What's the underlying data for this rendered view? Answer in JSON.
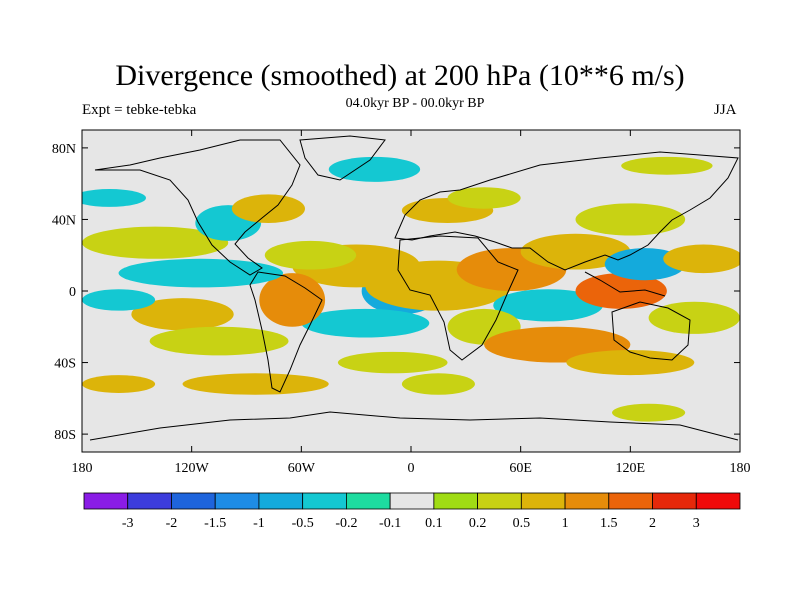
{
  "title": "Divergence (smoothed) at 200 hPa (10**6 m/s)",
  "left_label": "Expt = tebke-tebka",
  "center_label": "04.0kyr BP - 00.0kyr BP",
  "right_label": "JJA",
  "lat_ticks": [
    "80N",
    "40N",
    "0",
    "40S",
    "80S"
  ],
  "lat_values": [
    80,
    40,
    0,
    -40,
    -80
  ],
  "lon_ticks": [
    "180",
    "120W",
    "60W",
    "0",
    "60E",
    "120E",
    "180"
  ],
  "lon_values": [
    -180,
    -120,
    -60,
    0,
    60,
    120,
    180
  ],
  "colorbar": {
    "labels": [
      "-3",
      "-2",
      "-1.5",
      "-1",
      "-0.5",
      "-0.2",
      "-0.1",
      "0.1",
      "0.2",
      "0.5",
      "1",
      "1.5",
      "2",
      "3"
    ],
    "colors": [
      "#8a1ce6",
      "#3c3cdc",
      "#1e64dc",
      "#1e8ce6",
      "#14aadc",
      "#14c8d2",
      "#1edca0",
      "#e6e6e6",
      "#a0dc14",
      "#c8d214",
      "#dcb40a",
      "#e68c0a",
      "#eb640a",
      "#e6280a",
      "#f00a0a"
    ]
  },
  "field_blobs": [
    {
      "lon": -5,
      "lat": 0,
      "rx": 12,
      "ry": 8,
      "c": 1
    },
    {
      "lon": -5,
      "lat": 0,
      "rx": 22,
      "ry": 13,
      "c": 4
    },
    {
      "lon": 15,
      "lat": 3,
      "rx": 40,
      "ry": 14,
      "c": 10
    },
    {
      "lon": -30,
      "lat": 14,
      "rx": 35,
      "ry": 12,
      "c": 10
    },
    {
      "lon": -25,
      "lat": -18,
      "rx": 35,
      "ry": 8,
      "c": 5
    },
    {
      "lon": -65,
      "lat": -5,
      "rx": 18,
      "ry": 15,
      "c": 11
    },
    {
      "lon": -55,
      "lat": 20,
      "rx": 25,
      "ry": 8,
      "c": 9
    },
    {
      "lon": -115,
      "lat": 10,
      "rx": 45,
      "ry": 8,
      "c": 5
    },
    {
      "lon": -140,
      "lat": 27,
      "rx": 40,
      "ry": 9,
      "c": 9
    },
    {
      "lon": -125,
      "lat": -13,
      "rx": 28,
      "ry": 9,
      "c": 10
    },
    {
      "lon": -160,
      "lat": -5,
      "rx": 20,
      "ry": 6,
      "c": 5
    },
    {
      "lon": -100,
      "lat": 38,
      "rx": 18,
      "ry": 10,
      "c": 5
    },
    {
      "lon": -78,
      "lat": 46,
      "rx": 20,
      "ry": 8,
      "c": 10
    },
    {
      "lon": -105,
      "lat": -28,
      "rx": 38,
      "ry": 8,
      "c": 9
    },
    {
      "lon": -85,
      "lat": -52,
      "rx": 40,
      "ry": 6,
      "c": 10
    },
    {
      "lon": -10,
      "lat": -40,
      "rx": 30,
      "ry": 6,
      "c": 9
    },
    {
      "lon": 55,
      "lat": 12,
      "rx": 30,
      "ry": 12,
      "c": 11
    },
    {
      "lon": 90,
      "lat": 22,
      "rx": 30,
      "ry": 10,
      "c": 10
    },
    {
      "lon": 75,
      "lat": -8,
      "rx": 30,
      "ry": 9,
      "c": 5
    },
    {
      "lon": 40,
      "lat": -20,
      "rx": 20,
      "ry": 10,
      "c": 9
    },
    {
      "lon": 80,
      "lat": -30,
      "rx": 40,
      "ry": 10,
      "c": 11
    },
    {
      "lon": 115,
      "lat": 0,
      "rx": 25,
      "ry": 10,
      "c": 12
    },
    {
      "lon": 128,
      "lat": 15,
      "rx": 22,
      "ry": 9,
      "c": 4
    },
    {
      "lon": 155,
      "lat": -15,
      "rx": 25,
      "ry": 9,
      "c": 9
    },
    {
      "lon": 160,
      "lat": 18,
      "rx": 22,
      "ry": 8,
      "c": 10
    },
    {
      "lon": 120,
      "lat": 40,
      "rx": 30,
      "ry": 9,
      "c": 9
    },
    {
      "lon": 20,
      "lat": 45,
      "rx": 25,
      "ry": 7,
      "c": 10
    },
    {
      "lon": 40,
      "lat": 52,
      "rx": 20,
      "ry": 6,
      "c": 9
    },
    {
      "lon": 120,
      "lat": -40,
      "rx": 35,
      "ry": 7,
      "c": 10
    },
    {
      "lon": -20,
      "lat": 68,
      "rx": 25,
      "ry": 7,
      "c": 5
    },
    {
      "lon": 140,
      "lat": 70,
      "rx": 25,
      "ry": 5,
      "c": 9
    },
    {
      "lon": 15,
      "lat": -52,
      "rx": 20,
      "ry": 6,
      "c": 9
    },
    {
      "lon": 130,
      "lat": -68,
      "rx": 20,
      "ry": 5,
      "c": 9
    },
    {
      "lon": -160,
      "lat": -52,
      "rx": 20,
      "ry": 5,
      "c": 10
    },
    {
      "lon": -165,
      "lat": 52,
      "rx": 20,
      "ry": 5,
      "c": 5
    }
  ]
}
